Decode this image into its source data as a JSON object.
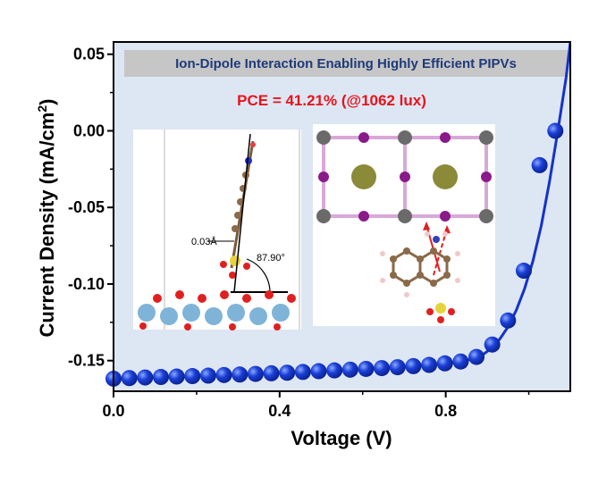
{
  "chart_data": {
    "type": "scatter",
    "title": "Ion-Dipole Interaction Enabling Highly Efficient PIPVs",
    "annotation": "PCE = 41.21% (@1062 lux)",
    "xlabel": "Voltage (V)",
    "ylabel": "Current Density (mA/cm",
    "ylabel_sup": "2",
    "ylabel_close": ")",
    "xlim": [
      0.0,
      1.1
    ],
    "ylim": [
      -0.17,
      0.058
    ],
    "xticks": [
      0.0,
      0.4,
      0.8
    ],
    "xtick_labels": [
      "0.0",
      "0.4",
      "0.8"
    ],
    "yticks": [
      0.05,
      0.0,
      -0.05,
      -0.1,
      -0.15
    ],
    "ytick_labels": [
      "0.05",
      "0.00",
      "-0.05",
      "-0.10",
      "-0.15"
    ],
    "grid": false,
    "series": [
      {
        "x": [
          0.0,
          0.038,
          0.076,
          0.114,
          0.152,
          0.19,
          0.228,
          0.266,
          0.304,
          0.342,
          0.38,
          0.418,
          0.456,
          0.494,
          0.532,
          0.57,
          0.608,
          0.646,
          0.684,
          0.722,
          0.76,
          0.798,
          0.836,
          0.874,
          0.912,
          0.95,
          0.988,
          1.026,
          1.064
        ],
        "y": [
          -0.1618,
          -0.1614,
          -0.161,
          -0.1607,
          -0.1604,
          -0.1601,
          -0.1598,
          -0.1594,
          -0.1591,
          -0.1587,
          -0.1583,
          -0.1579,
          -0.1574,
          -0.1569,
          -0.1564,
          -0.1559,
          -0.1554,
          -0.1549,
          -0.1543,
          -0.1536,
          -0.1528,
          -0.1518,
          -0.1506,
          -0.1476,
          -0.1395,
          -0.1238,
          -0.0913,
          -0.0224,
          0.0
        ]
      }
    ],
    "curve": {
      "x": [
        0.0,
        0.2,
        0.4,
        0.6,
        0.7,
        0.8,
        0.84,
        0.87,
        0.89,
        0.91,
        0.93,
        0.95,
        0.97,
        0.99,
        1.01,
        1.03,
        1.05,
        1.07,
        1.09,
        1.1
      ],
      "y": [
        -0.1618,
        -0.16,
        -0.158,
        -0.1555,
        -0.154,
        -0.152,
        -0.1505,
        -0.1485,
        -0.146,
        -0.142,
        -0.136,
        -0.128,
        -0.117,
        -0.103,
        -0.085,
        -0.062,
        -0.033,
        0.0,
        0.035,
        0.058
      ]
    },
    "colors": {
      "marker": "#1a3fd6",
      "curve": "#1533c9",
      "plot_background": "#dde6f3",
      "banner": "#c6c6c6",
      "banner_text": "#1f3a78",
      "annotation_text": "#e8131b"
    },
    "insets": {
      "left": {
        "distance_label": "0.03Å",
        "angle_label": "87.90°"
      }
    }
  }
}
